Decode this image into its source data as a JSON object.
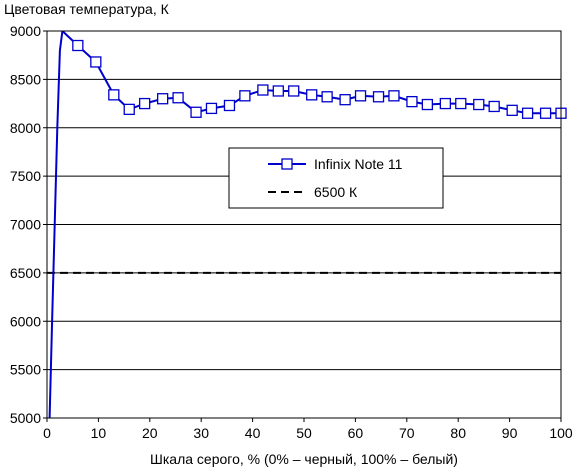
{
  "chart_data": {
    "type": "line",
    "title": "Цветовая температура, К",
    "xlabel": "Шкала серого, % (0% – черный, 100% – белый)",
    "ylabel": "",
    "xlim": [
      0,
      100
    ],
    "ylim": [
      5000,
      9000
    ],
    "xticks": [
      0,
      10,
      20,
      30,
      40,
      50,
      60,
      70,
      80,
      90,
      100
    ],
    "yticks": [
      5000,
      5500,
      6000,
      6500,
      7000,
      7500,
      8000,
      8500,
      9000
    ],
    "grid": "horizontal",
    "legend_position": "center-right",
    "series": [
      {
        "name": "Infinix Note 11",
        "color": "#0000cc",
        "marker": "square",
        "x": [
          0.5,
          1,
          1.5,
          2,
          2.5,
          3,
          6,
          9.5,
          13,
          16,
          19,
          22.5,
          25.5,
          29,
          32,
          35.5,
          38.5,
          42,
          45,
          48,
          51.5,
          54.5,
          58,
          61,
          64.5,
          67.5,
          71,
          74,
          77.5,
          80.5,
          84,
          87,
          90.5,
          93.5,
          97,
          100
        ],
        "y": [
          5000,
          6000,
          7000,
          8000,
          8800,
          9000,
          8850,
          8680,
          8340,
          8190,
          8250,
          8300,
          8310,
          8160,
          8200,
          8230,
          8330,
          8390,
          8380,
          8380,
          8340,
          8320,
          8290,
          8330,
          8320,
          8330,
          8270,
          8240,
          8250,
          8250,
          8240,
          8220,
          8180,
          8150,
          8150,
          8150
        ],
        "markers_from_index": 6
      },
      {
        "name": "6500 К",
        "color": "#000000",
        "dash": "dashed",
        "x": [
          0,
          100
        ],
        "y": [
          6500,
          6500
        ]
      }
    ]
  }
}
